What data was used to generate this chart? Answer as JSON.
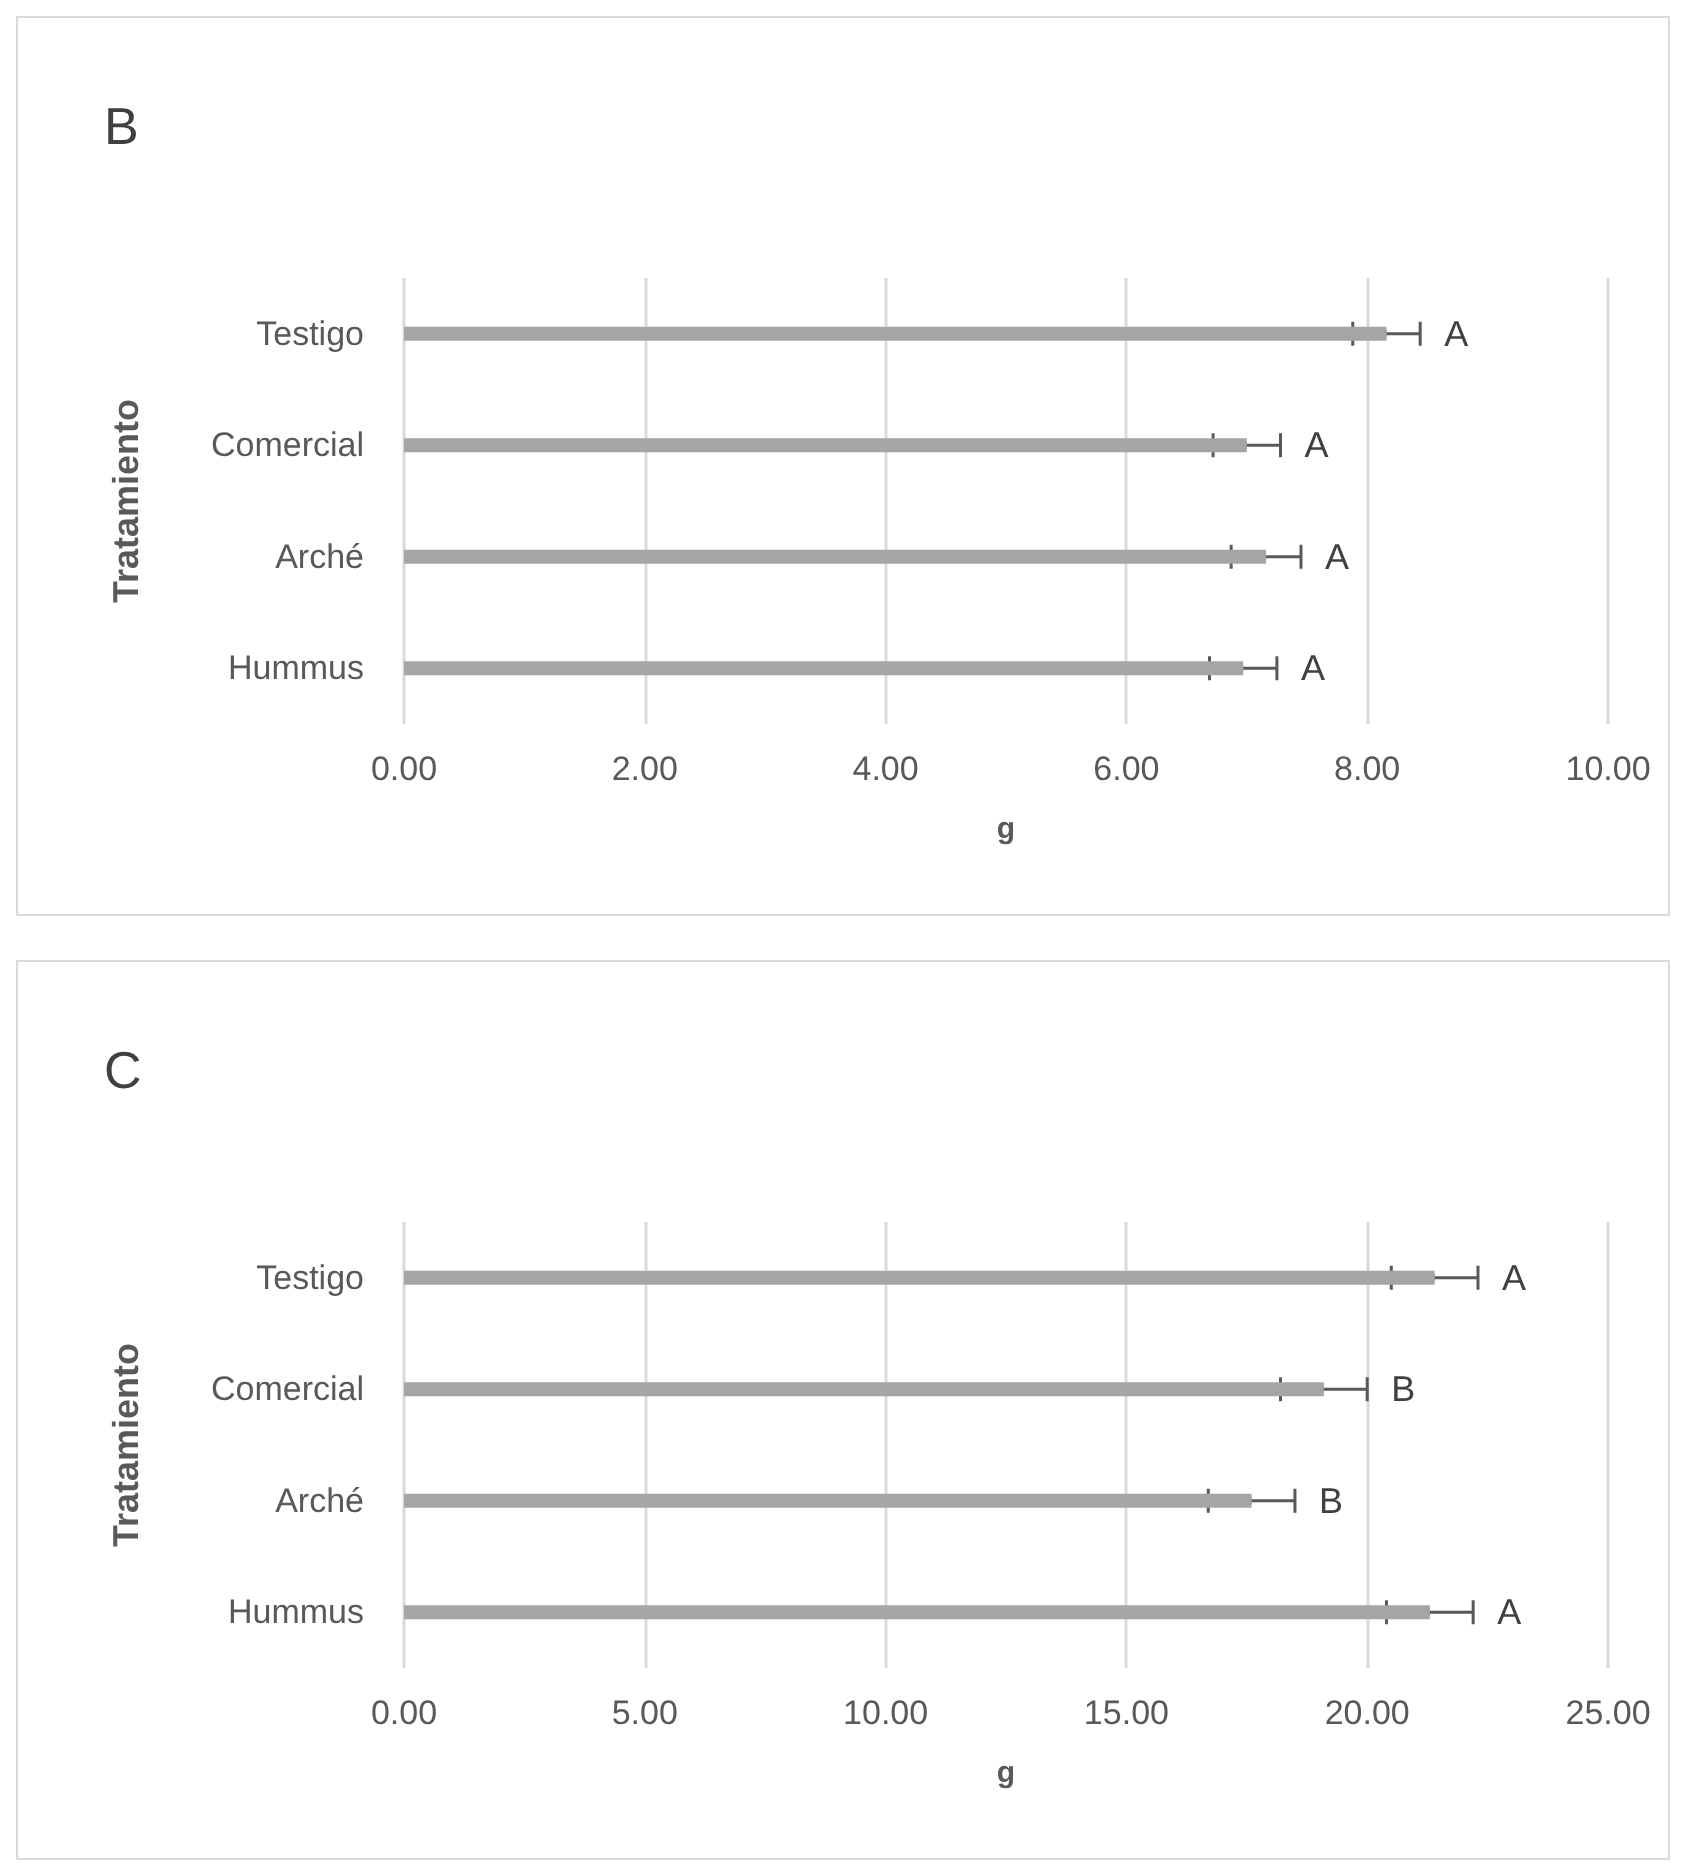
{
  "chart_data": [
    {
      "type": "bar",
      "orientation": "horizontal",
      "title": "B",
      "ylabel": "Tratamiento",
      "xlabel": "g",
      "categories": [
        "Testigo",
        "Comercial",
        "Arché",
        "Hummus"
      ],
      "series": [
        {
          "color": "#a5a5a5",
          "values": [
            8.16,
            7.0,
            7.16,
            6.97
          ],
          "errors": [
            0.28,
            0.28,
            0.29,
            0.28
          ],
          "value_labels": [
            "A",
            "A",
            "A",
            "A"
          ]
        }
      ],
      "xlim": [
        0,
        10
      ],
      "xticks": [
        {
          "value": 0,
          "label": "0.00"
        },
        {
          "value": 2,
          "label": "2.00"
        },
        {
          "value": 4,
          "label": "4.00"
        },
        {
          "value": 6,
          "label": "6.00"
        },
        {
          "value": 8,
          "label": "8.00"
        },
        {
          "value": 10,
          "label": "10.00"
        }
      ],
      "grid": "x"
    },
    {
      "type": "bar",
      "orientation": "horizontal",
      "title": "C",
      "ylabel": "Tratamiento",
      "xlabel": "g",
      "categories": [
        "Testigo",
        "Comercial",
        "Arché",
        "Hummus"
      ],
      "series": [
        {
          "color": "#a5a5a5",
          "values": [
            21.4,
            19.1,
            17.6,
            21.3
          ],
          "errors": [
            0.9,
            0.9,
            0.9,
            0.9
          ],
          "value_labels": [
            "A",
            "B",
            "B",
            "A"
          ]
        }
      ],
      "xlim": [
        0,
        25
      ],
      "xticks": [
        {
          "value": 0,
          "label": "0.00"
        },
        {
          "value": 5,
          "label": "5.00"
        },
        {
          "value": 10,
          "label": "10.00"
        },
        {
          "value": 15,
          "label": "15.00"
        },
        {
          "value": 20,
          "label": "20.00"
        },
        {
          "value": 25,
          "label": "25.00"
        }
      ],
      "grid": "x"
    }
  ]
}
